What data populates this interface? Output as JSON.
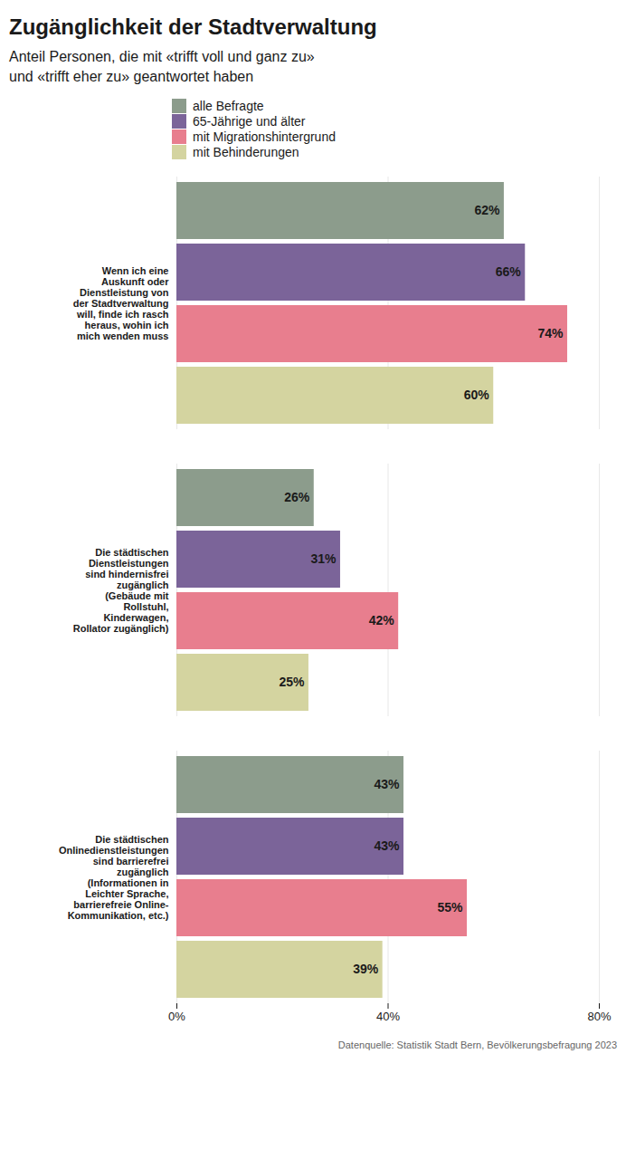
{
  "chart_data": {
    "type": "bar",
    "orientation": "horizontal",
    "title": "Zugänglichkeit der Stadtverwaltung",
    "subtitle": "Anteil Personen, die mit «trifft voll und ganz zu»\nund «trifft eher zu» geantwortet haben",
    "caption": "Datenquelle: Statistik Stadt Bern, Bevölkerungsbefragung 2023",
    "categories": [
      "Wenn ich eine\nAuskunft oder\nDienstleistung von\nder Stadtverwaltung\nwill, finde ich rasch\nheraus, wohin ich\nmich wenden muss",
      "Die städtischen\nDienstleistungen\nsind hindernisfrei\nzugänglich\n(Gebäude mit\nRollstuhl,\nKinderwagen,\nRollator zugänglich)",
      "Die städtischen\nOnlinedienstleistungen\nsind barrierefrei\nzugänglich\n(Informationen in\nLeichter Sprache,\nbarrierefreie Online-\nKommunikation, etc.)"
    ],
    "series": [
      {
        "name": "alle Befragte",
        "color": "#8c9c8c",
        "values": [
          62,
          26,
          43
        ],
        "value_labels": [
          "62%",
          "26%",
          "43%"
        ]
      },
      {
        "name": "65-Jährige und älter",
        "color": "#7b6499",
        "values": [
          66,
          31,
          43
        ],
        "value_labels": [
          "66%",
          "31%",
          "43%"
        ]
      },
      {
        "name": "mit Migrationshintergrund",
        "color": "#e87e8e",
        "values": [
          74,
          42,
          55
        ],
        "value_labels": [
          "74%",
          "42%",
          "55%"
        ]
      },
      {
        "name": "mit Behinderungen",
        "color": "#d4d4a0",
        "values": [
          60,
          25,
          39
        ],
        "value_labels": [
          "60%",
          "25%",
          "39%"
        ]
      }
    ],
    "xlim": [
      0,
      80
    ],
    "xticks": [
      {
        "value": 0,
        "label": "0%"
      },
      {
        "value": 40,
        "label": "40%"
      },
      {
        "value": 80,
        "label": "80%"
      }
    ],
    "grid": true,
    "data_labels": true,
    "legend": "top"
  }
}
